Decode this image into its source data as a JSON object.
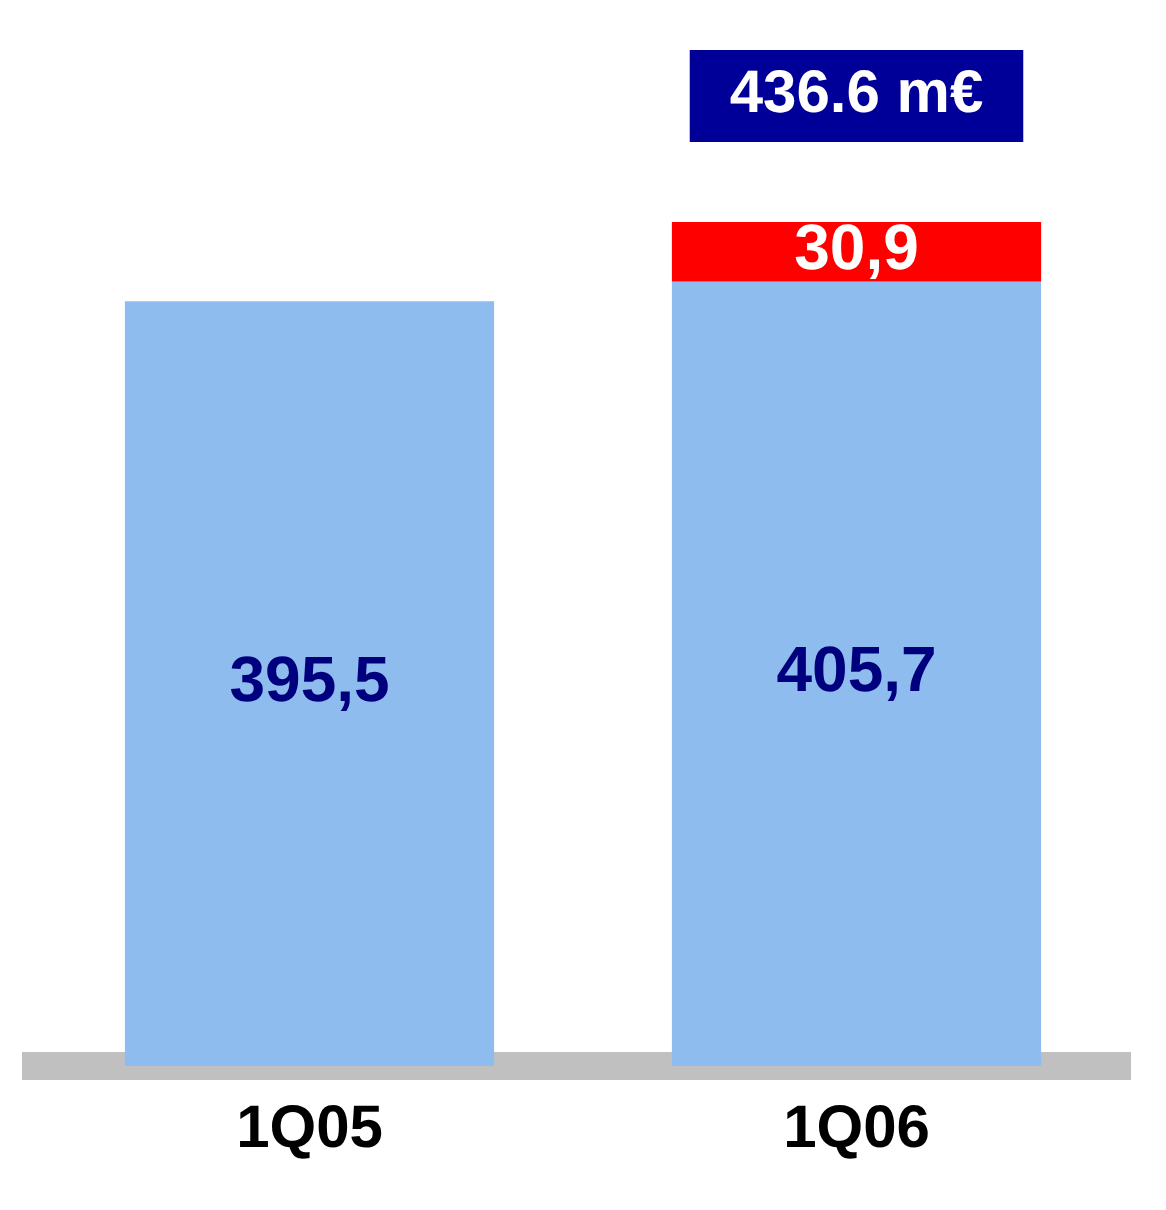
{
  "chart_data": {
    "type": "bar",
    "stacked": true,
    "categories": [
      "1Q05",
      "1Q06"
    ],
    "series": [
      {
        "color": "#8fbcee",
        "values": [
          395.5,
          405.7
        ],
        "value_labels": [
          "395,5",
          "405,7"
        ]
      },
      {
        "color": "#ff0000",
        "values": [
          null,
          30.9
        ],
        "value_labels": [
          null,
          "30,9"
        ]
      }
    ],
    "totals": [
      null,
      "436.6 m€"
    ],
    "grid": false,
    "legend": false,
    "tick_labels": "x"
  }
}
